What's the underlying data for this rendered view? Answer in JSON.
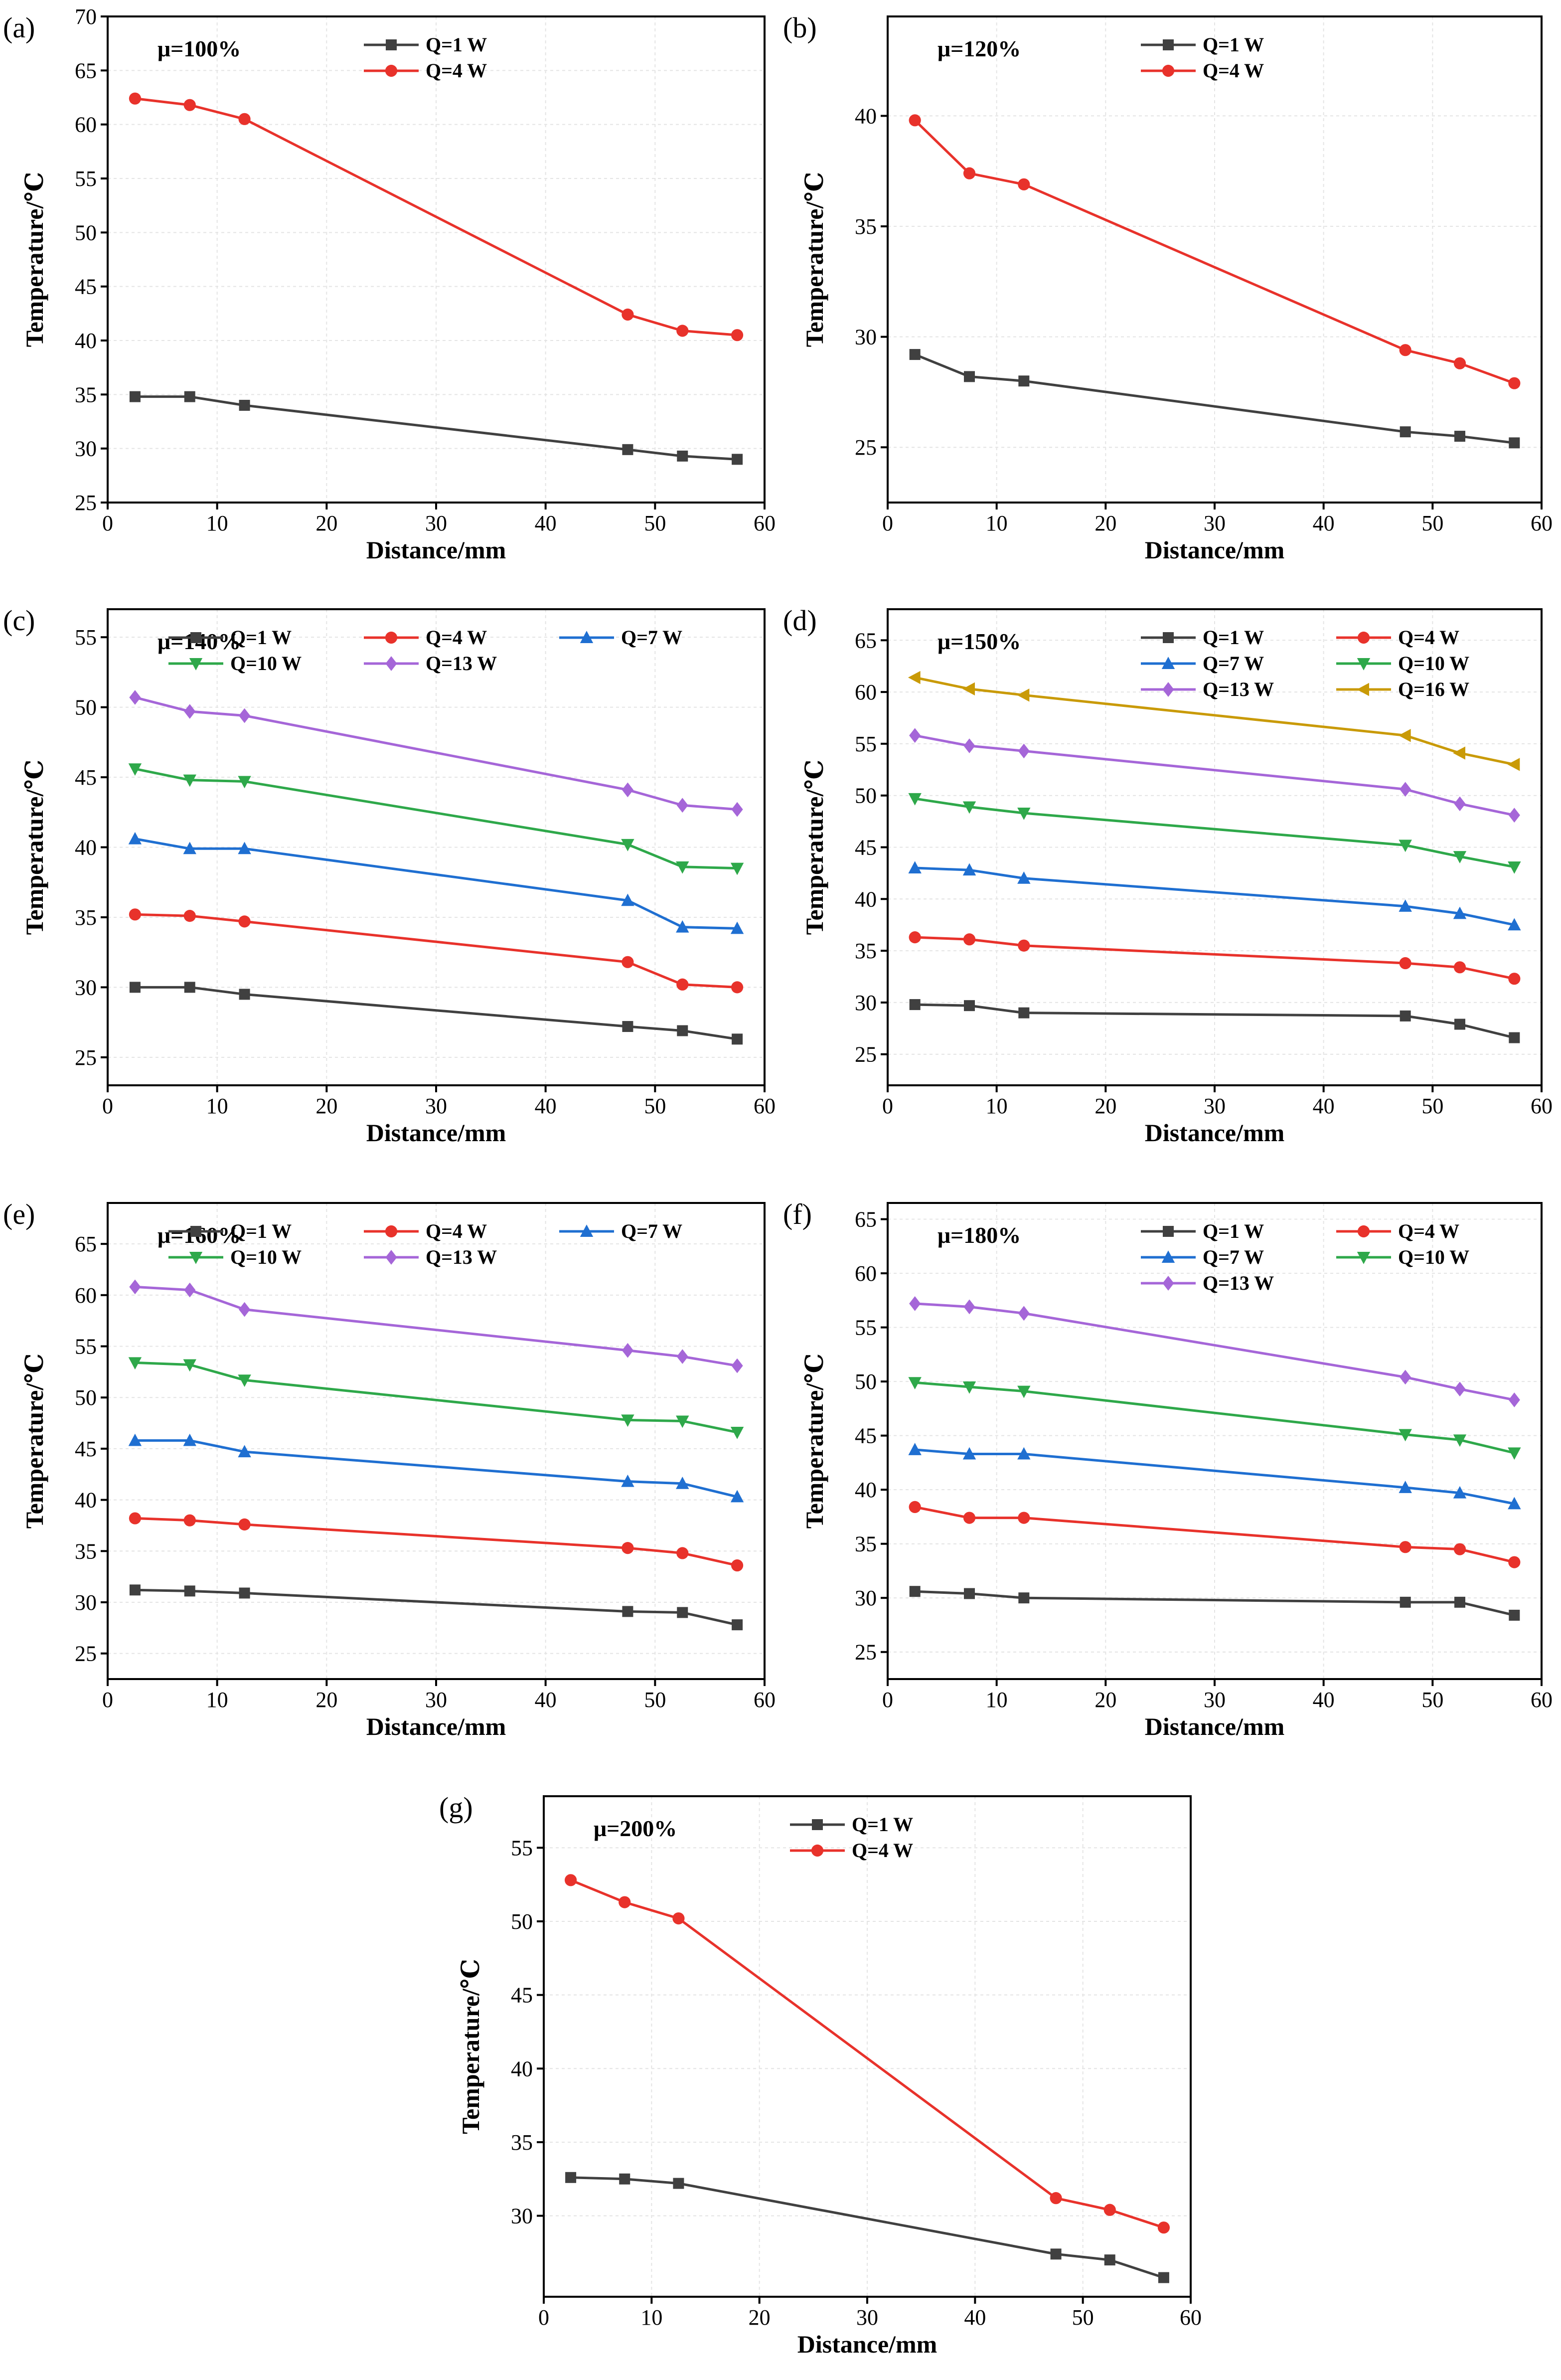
{
  "figure": {
    "xlabel": "Distance/mm",
    "ylabel": "Temperature/℃"
  },
  "legend_styles": {
    "Q=1 W": {
      "color": "#404040",
      "marker": "square"
    },
    "Q=4 W": {
      "color": "#e8322b",
      "marker": "circle"
    },
    "Q=7 W": {
      "color": "#1f6fd1",
      "marker": "triangle-up"
    },
    "Q=10 W": {
      "color": "#2ea84a",
      "marker": "triangle-down"
    },
    "Q=13 W": {
      "color": "#a566d8",
      "marker": "diamond"
    },
    "Q=16 W": {
      "color": "#c99a06",
      "marker": "triangle-left"
    }
  },
  "chart_data": [
    {
      "panel": "(a)",
      "type": "line",
      "annotation": "μ=100%",
      "xlabel": "Distance/mm",
      "ylabel": "Temperature/℃",
      "xlim": [
        0,
        60
      ],
      "ylim": [
        25,
        70
      ],
      "xticks": [
        0,
        10,
        20,
        30,
        40,
        50,
        60
      ],
      "yticks": [
        25,
        30,
        35,
        40,
        45,
        50,
        55,
        60,
        65,
        70
      ],
      "x": [
        2.5,
        7.5,
        12.5,
        47.5,
        52.5,
        57.5
      ],
      "series": [
        {
          "name": "Q=1 W",
          "values": [
            34.8,
            34.8,
            34.0,
            29.9,
            29.3,
            29.0
          ]
        },
        {
          "name": "Q=4 W",
          "values": [
            62.4,
            61.8,
            60.5,
            42.4,
            40.9,
            40.5
          ]
        }
      ]
    },
    {
      "panel": "(b)",
      "type": "line",
      "annotation": "μ=120%",
      "xlabel": "Distance/mm",
      "ylabel": "Temperature/℃",
      "xlim": [
        0,
        60
      ],
      "ylim": [
        22.5,
        44.5
      ],
      "xticks": [
        0,
        10,
        20,
        30,
        40,
        50,
        60
      ],
      "yticks": [
        25,
        30,
        35,
        40
      ],
      "x": [
        2.5,
        7.5,
        12.5,
        47.5,
        52.5,
        57.5
      ],
      "series": [
        {
          "name": "Q=1 W",
          "values": [
            29.2,
            28.2,
            28.0,
            25.7,
            25.5,
            25.2
          ]
        },
        {
          "name": "Q=4 W",
          "values": [
            39.8,
            37.4,
            36.9,
            29.4,
            28.8,
            27.9
          ]
        }
      ]
    },
    {
      "panel": "(c)",
      "type": "line",
      "annotation": "μ=140%",
      "xlabel": "Distance/mm",
      "ylabel": "Temperature/℃",
      "xlim": [
        0,
        60
      ],
      "ylim": [
        23,
        57
      ],
      "xticks": [
        0,
        10,
        20,
        30,
        40,
        50,
        60
      ],
      "yticks": [
        25,
        30,
        35,
        40,
        45,
        50,
        55
      ],
      "x": [
        2.5,
        7.5,
        12.5,
        47.5,
        52.5,
        57.5
      ],
      "series": [
        {
          "name": "Q=1 W",
          "values": [
            30.0,
            30.0,
            29.5,
            27.2,
            26.9,
            26.3
          ]
        },
        {
          "name": "Q=4 W",
          "values": [
            35.2,
            35.1,
            34.7,
            31.8,
            30.2,
            30.0
          ]
        },
        {
          "name": "Q=7 W",
          "values": [
            40.6,
            39.9,
            39.9,
            36.2,
            34.3,
            34.2
          ]
        },
        {
          "name": "Q=10 W",
          "values": [
            45.6,
            44.8,
            44.7,
            40.2,
            38.6,
            38.5
          ]
        },
        {
          "name": "Q=13 W",
          "values": [
            50.7,
            49.7,
            49.4,
            44.1,
            43.0,
            42.7
          ]
        }
      ]
    },
    {
      "panel": "(d)",
      "type": "line",
      "annotation": "μ=150%",
      "xlabel": "Distance/mm",
      "ylabel": "Temperature/℃",
      "xlim": [
        0,
        60
      ],
      "ylim": [
        22,
        68
      ],
      "xticks": [
        0,
        10,
        20,
        30,
        40,
        50,
        60
      ],
      "yticks": [
        25,
        30,
        35,
        40,
        45,
        50,
        55,
        60,
        65
      ],
      "x": [
        2.5,
        7.5,
        12.5,
        47.5,
        52.5,
        57.5
      ],
      "series": [
        {
          "name": "Q=1 W",
          "values": [
            29.8,
            29.7,
            29.0,
            28.7,
            27.9,
            26.6
          ]
        },
        {
          "name": "Q=4 W",
          "values": [
            36.3,
            36.1,
            35.5,
            33.8,
            33.4,
            32.3
          ]
        },
        {
          "name": "Q=7 W",
          "values": [
            43.0,
            42.8,
            42.0,
            39.3,
            38.6,
            37.5
          ]
        },
        {
          "name": "Q=10 W",
          "values": [
            49.7,
            48.9,
            48.3,
            45.2,
            44.1,
            43.1
          ]
        },
        {
          "name": "Q=13 W",
          "values": [
            55.8,
            54.8,
            54.3,
            50.6,
            49.2,
            48.1
          ]
        },
        {
          "name": "Q=16 W",
          "values": [
            61.4,
            60.3,
            59.7,
            55.8,
            54.1,
            53.0
          ]
        }
      ]
    },
    {
      "panel": "(e)",
      "type": "line",
      "annotation": "μ=160%",
      "xlabel": "Distance/mm",
      "ylabel": "Temperature/℃",
      "xlim": [
        0,
        60
      ],
      "ylim": [
        22.5,
        69
      ],
      "xticks": [
        0,
        10,
        20,
        30,
        40,
        50,
        60
      ],
      "yticks": [
        25,
        30,
        35,
        40,
        45,
        50,
        55,
        60,
        65
      ],
      "x": [
        2.5,
        7.5,
        12.5,
        47.5,
        52.5,
        57.5
      ],
      "series": [
        {
          "name": "Q=1 W",
          "values": [
            31.2,
            31.1,
            30.9,
            29.1,
            29.0,
            27.8
          ]
        },
        {
          "name": "Q=4 W",
          "values": [
            38.2,
            38.0,
            37.6,
            35.3,
            34.8,
            33.6
          ]
        },
        {
          "name": "Q=7 W",
          "values": [
            45.8,
            45.8,
            44.7,
            41.8,
            41.6,
            40.3
          ]
        },
        {
          "name": "Q=10 W",
          "values": [
            53.4,
            53.2,
            51.7,
            47.8,
            47.7,
            46.6
          ]
        },
        {
          "name": "Q=13 W",
          "values": [
            60.8,
            60.5,
            58.6,
            54.6,
            54.0,
            53.1
          ]
        }
      ]
    },
    {
      "panel": "(f)",
      "type": "line",
      "annotation": "μ=180%",
      "xlabel": "Distance/mm",
      "ylabel": "Temperature/℃",
      "xlim": [
        0,
        60
      ],
      "ylim": [
        22.5,
        66.5
      ],
      "xticks": [
        0,
        10,
        20,
        30,
        40,
        50,
        60
      ],
      "yticks": [
        25,
        30,
        35,
        40,
        45,
        50,
        55,
        60,
        65
      ],
      "x": [
        2.5,
        7.5,
        12.5,
        47.5,
        52.5,
        57.5
      ],
      "series": [
        {
          "name": "Q=1 W",
          "values": [
            30.6,
            30.4,
            30.0,
            29.6,
            29.6,
            28.4
          ]
        },
        {
          "name": "Q=4 W",
          "values": [
            38.4,
            37.4,
            37.4,
            34.7,
            34.5,
            33.3
          ]
        },
        {
          "name": "Q=7 W",
          "values": [
            43.7,
            43.3,
            43.3,
            40.2,
            39.7,
            38.7
          ]
        },
        {
          "name": "Q=10 W",
          "values": [
            49.9,
            49.5,
            49.1,
            45.1,
            44.6,
            43.4
          ]
        },
        {
          "name": "Q=13 W",
          "values": [
            57.2,
            56.9,
            56.3,
            50.4,
            49.3,
            48.3
          ]
        }
      ]
    },
    {
      "panel": "(g)",
      "type": "line",
      "annotation": "μ=200%",
      "xlabel": "Distance/mm",
      "ylabel": "Temperature/℃",
      "xlim": [
        0,
        60
      ],
      "ylim": [
        24.5,
        58.5
      ],
      "xticks": [
        0,
        10,
        20,
        30,
        40,
        50,
        60
      ],
      "yticks": [
        30,
        35,
        40,
        45,
        50,
        55
      ],
      "x": [
        2.5,
        7.5,
        12.5,
        47.5,
        52.5,
        57.5
      ],
      "series": [
        {
          "name": "Q=1 W",
          "values": [
            32.6,
            32.5,
            32.2,
            27.4,
            27.0,
            25.8
          ]
        },
        {
          "name": "Q=4 W",
          "values": [
            52.8,
            51.3,
            50.2,
            31.2,
            30.4,
            29.2
          ]
        }
      ]
    }
  ]
}
